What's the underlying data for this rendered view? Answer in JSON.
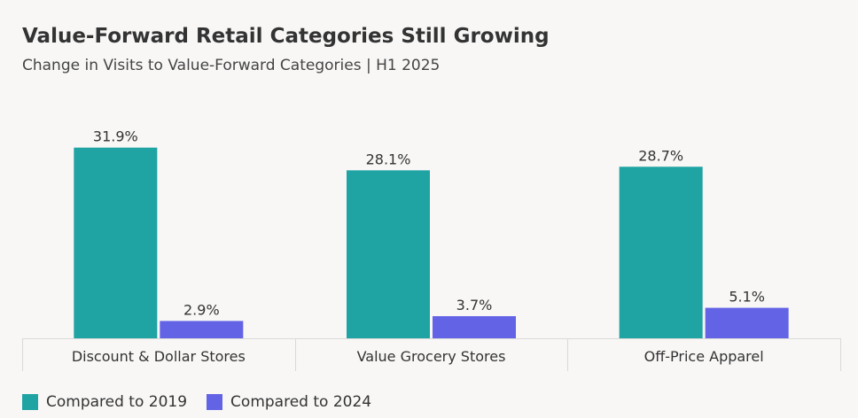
{
  "colors": {
    "series_2019": "#1fa3a3",
    "series_2024": "#6363e6",
    "axis": "#d9d9d9",
    "text": "#333333"
  },
  "chart_data": {
    "type": "bar",
    "title": "Value-Forward Retail Categories Still Growing",
    "subtitle": "Change in Visits to Value-Forward Categories | H1 2025",
    "categories": [
      "Discount & Dollar Stores",
      "Value Grocery Stores",
      "Off-Price Apparel"
    ],
    "series": [
      {
        "name": "Compared to 2019",
        "values": [
          31.9,
          28.1,
          28.7
        ],
        "labels": [
          "31.9%",
          "28.1%",
          "28.7%"
        ]
      },
      {
        "name": "Compared to 2024",
        "values": [
          2.9,
          3.7,
          5.1
        ],
        "labels": [
          "2.9%",
          "3.7%",
          "5.1%"
        ]
      }
    ],
    "ylim": [
      0,
      32
    ],
    "grid": false,
    "legend": "bottom-left"
  }
}
